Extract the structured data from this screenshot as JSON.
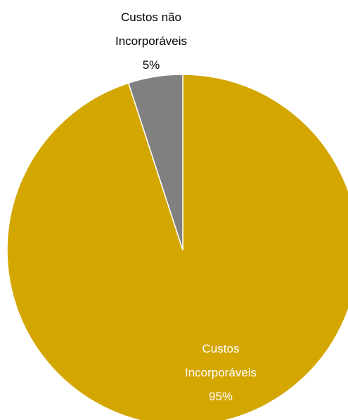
{
  "chart_data": {
    "type": "pie",
    "title": "",
    "slices": [
      {
        "label_lines": [
          "Custos",
          "Incorporáveis"
        ],
        "pct_text": "95%",
        "value": 95,
        "color": "#D4A600",
        "label_color": "#FFFFFF"
      },
      {
        "label_lines": [
          "Custos não",
          "Incorporáveis"
        ],
        "pct_text": "5%",
        "value": 5,
        "color": "#808080",
        "label_color": "#000000"
      }
    ]
  }
}
